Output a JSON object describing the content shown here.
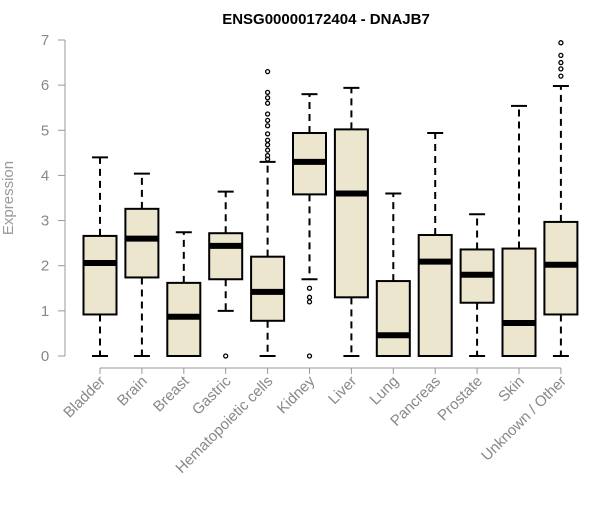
{
  "chart_data": {
    "type": "boxplot",
    "title": "ENSG00000172404 - DNAJB7",
    "xlabel": "",
    "ylabel": "Expression",
    "ylim": [
      0,
      7
    ],
    "yticks": [
      0,
      1,
      2,
      3,
      4,
      5,
      6,
      7
    ],
    "grid": false,
    "categories": [
      "Bladder",
      "Brain",
      "Breast",
      "Gastric",
      "Hematopoietic cells",
      "Kidney",
      "Liver",
      "Lung",
      "Pancreas",
      "Prostate",
      "Skin",
      "Unknown / Other"
    ],
    "boxes": [
      {
        "whisker_low": 0,
        "q1": 0.92,
        "median": 2.06,
        "q3": 2.66,
        "whisker_high": 4.4,
        "outliers": []
      },
      {
        "whisker_low": 0,
        "q1": 1.74,
        "median": 2.6,
        "q3": 3.26,
        "whisker_high": 4.04,
        "outliers": []
      },
      {
        "whisker_low": 0,
        "q1": 0,
        "median": 0.87,
        "q3": 1.62,
        "whisker_high": 2.74,
        "outliers": []
      },
      {
        "whisker_low": 1.0,
        "q1": 1.7,
        "median": 2.44,
        "q3": 2.72,
        "whisker_high": 3.64,
        "outliers": [
          0.0
        ]
      },
      {
        "whisker_low": 0,
        "q1": 0.78,
        "median": 1.42,
        "q3": 2.2,
        "whisker_high": 4.3,
        "outliers": [
          4.36,
          4.44,
          4.56,
          4.68,
          4.78,
          4.92,
          5.1,
          5.22,
          5.36,
          5.6,
          5.72,
          5.84,
          6.3
        ]
      },
      {
        "whisker_low": 1.7,
        "q1": 3.58,
        "median": 4.3,
        "q3": 4.94,
        "whisker_high": 5.8,
        "outliers": [
          1.5,
          1.3,
          1.2,
          0.0
        ]
      },
      {
        "whisker_low": 0,
        "q1": 1.3,
        "median": 3.6,
        "q3": 5.02,
        "whisker_high": 5.94,
        "outliers": []
      },
      {
        "whisker_low": 0,
        "q1": 0,
        "median": 0.46,
        "q3": 1.66,
        "whisker_high": 3.6,
        "outliers": []
      },
      {
        "whisker_low": 0,
        "q1": 0,
        "median": 2.09,
        "q3": 2.68,
        "whisker_high": 4.94,
        "outliers": []
      },
      {
        "whisker_low": 0,
        "q1": 1.18,
        "median": 1.8,
        "q3": 2.36,
        "whisker_high": 3.14,
        "outliers": []
      },
      {
        "whisker_low": 0,
        "q1": 0,
        "median": 0.73,
        "q3": 2.38,
        "whisker_high": 5.54,
        "outliers": []
      },
      {
        "whisker_low": 0,
        "q1": 0.92,
        "median": 2.02,
        "q3": 2.97,
        "whisker_high": 5.98,
        "outliers": [
          6.2,
          6.36,
          6.5,
          6.66,
          6.94
        ]
      }
    ],
    "colors": {
      "box_fill": "#ede6cf",
      "box_stroke": "#000000",
      "median": "#000000",
      "axis": "#999999",
      "tick_text": "#888888"
    }
  }
}
